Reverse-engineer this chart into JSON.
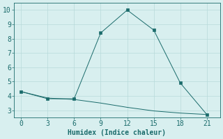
{
  "line1_x": [
    0,
    3,
    6,
    9,
    12,
    15,
    18,
    21
  ],
  "line1_y": [
    4.3,
    3.8,
    3.8,
    8.4,
    10.0,
    8.6,
    4.9,
    2.7
  ],
  "line2_x": [
    0,
    3,
    6,
    9,
    12,
    15,
    18,
    21
  ],
  "line2_y": [
    4.3,
    3.85,
    3.75,
    3.5,
    3.2,
    2.95,
    2.8,
    2.7
  ],
  "line_color": "#1a6b6b",
  "background_color": "#d8efef",
  "grid_color": "#b8dada",
  "xlabel": "Humidex (Indice chaleur)",
  "xlim": [
    -0.8,
    22.5
  ],
  "ylim": [
    2.5,
    10.5
  ],
  "xticks": [
    0,
    3,
    6,
    9,
    12,
    15,
    18,
    21
  ],
  "yticks": [
    3,
    4,
    5,
    6,
    7,
    8,
    9,
    10
  ],
  "xlabel_fontsize": 7,
  "tick_fontsize": 7
}
